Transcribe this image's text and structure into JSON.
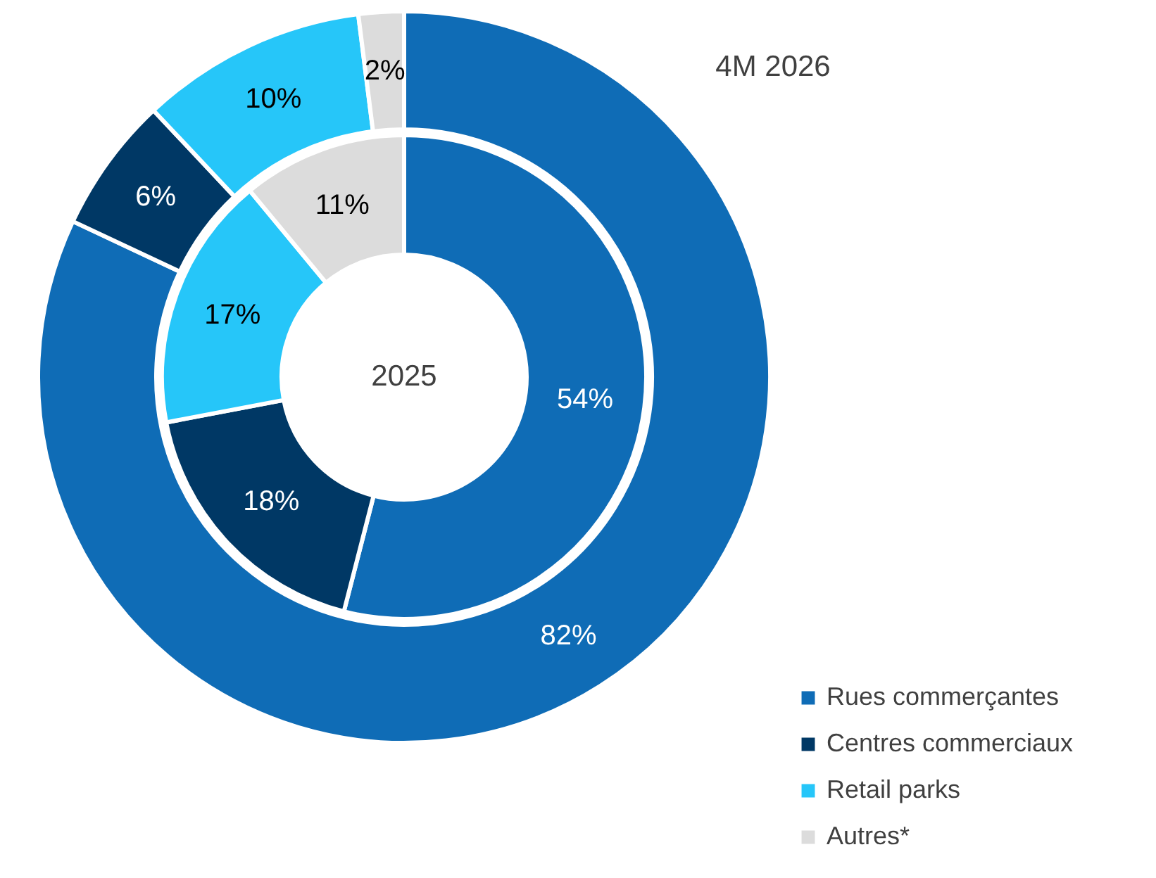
{
  "chart_data": {
    "type": "donut",
    "categories": [
      "Rues commerçantes",
      "Centres commerciaux",
      "Retail parks",
      "Autres*"
    ],
    "colors": [
      "#0f6cb6",
      "#003865",
      "#26c6f9",
      "#dcdcdc"
    ],
    "series": [
      {
        "name": "4M 2026",
        "values": [
          82,
          6,
          10,
          2
        ],
        "value_labels": [
          "82%",
          "6%",
          "10%",
          "2%"
        ]
      },
      {
        "name": "2025",
        "values": [
          54,
          18,
          17,
          11
        ],
        "value_labels": [
          "54%",
          "18%",
          "17%",
          "11%"
        ]
      }
    ],
    "legend": "bottom right"
  }
}
